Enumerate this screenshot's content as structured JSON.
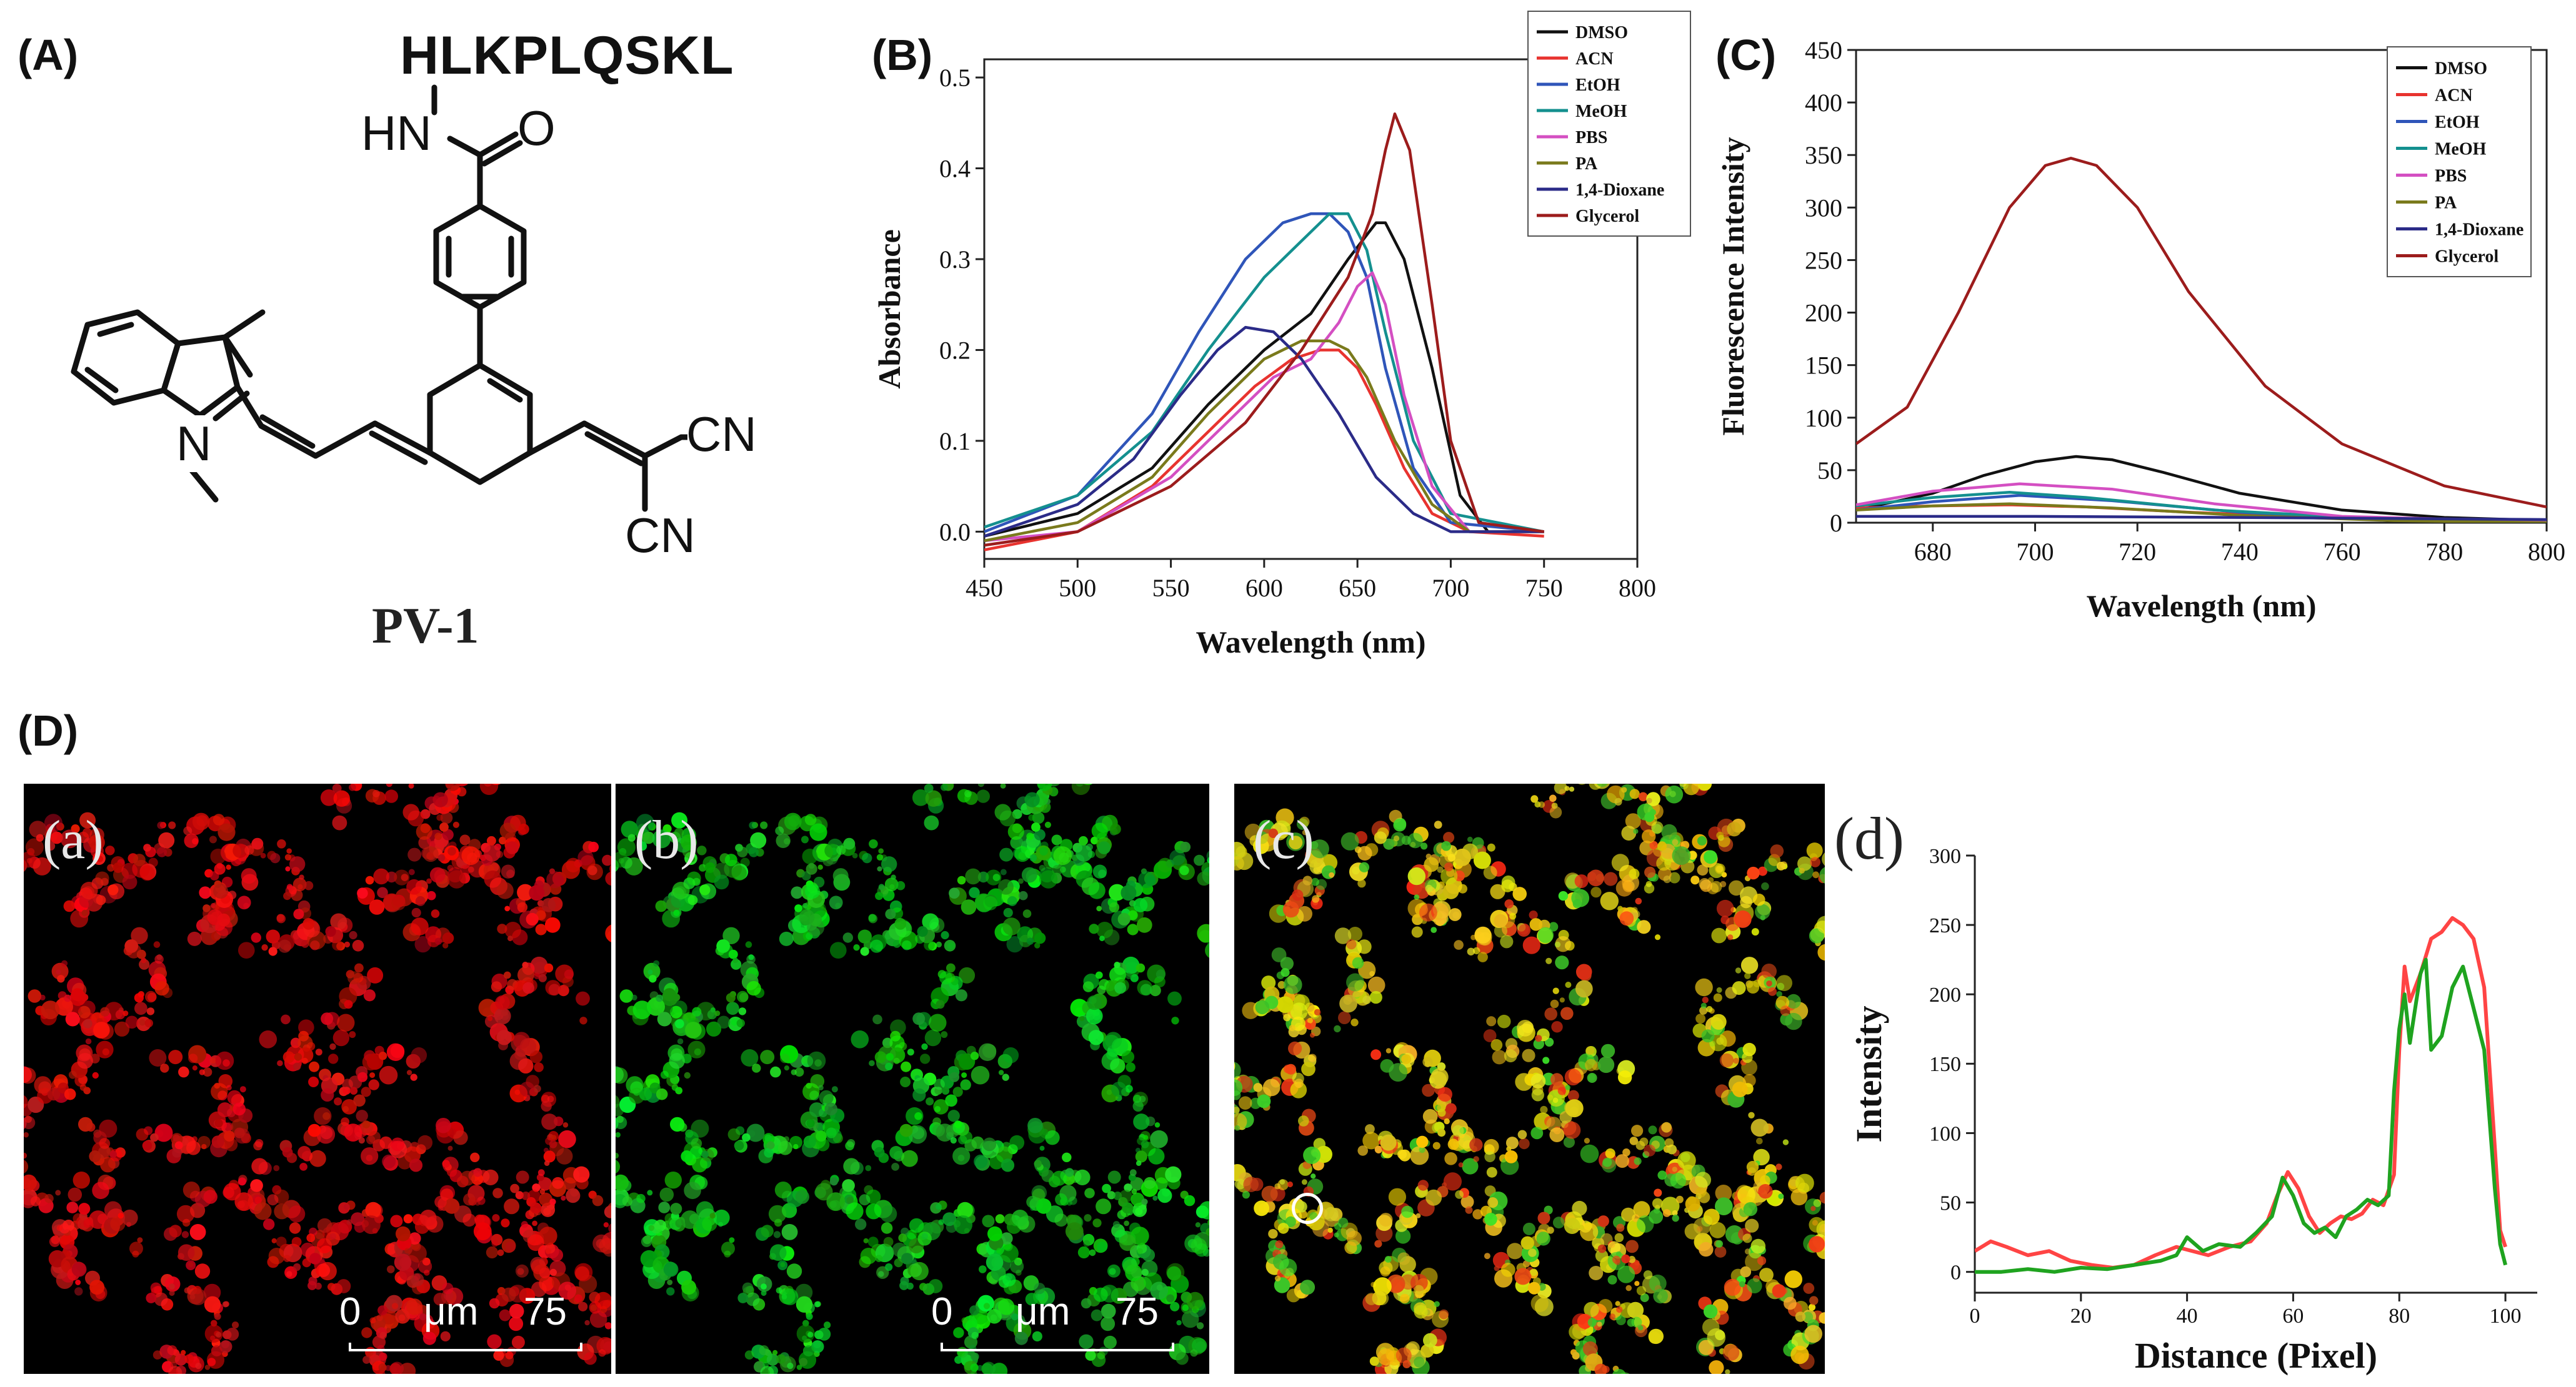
{
  "panels": {
    "A": {
      "label": "(A)",
      "peptide": "HLKPLQSKL",
      "compound_name": "PV-1",
      "atoms": {
        "hn": "HN",
        "o": "O",
        "n": "N",
        "cn1": "CN",
        "cn2": "CN"
      }
    },
    "B": {
      "label": "(B)"
    },
    "C": {
      "label": "(C)"
    },
    "D": {
      "label": "(D)",
      "images": [
        {
          "label": "(a)",
          "channel": "red",
          "scale_start": "0",
          "scale_unit": "μm",
          "scale_end": "75"
        },
        {
          "label": "(b)",
          "channel": "green",
          "scale_start": "0",
          "scale_unit": "μm",
          "scale_end": "75"
        },
        {
          "label": "(c)",
          "channel": "merge"
        }
      ]
    }
  },
  "colors": {
    "DMSO": "#111111",
    "ACN": "#e8332f",
    "EtOH": "#2f55b9",
    "MeOH": "#14908f",
    "PBS": "#d44fc2",
    "PA": "#7a7a1c",
    "Dioxane": "#2b2b88",
    "Glycerol": "#9c1c1c",
    "profile_red": "#ff4444",
    "profile_green": "#1fa31f"
  },
  "chart_data": [
    {
      "id": "B",
      "type": "line",
      "xlabel": "Wavelength (nm)",
      "ylabel": "Absorbance",
      "xlim": [
        450,
        800
      ],
      "ylim": [
        -0.03,
        0.52
      ],
      "xticks": [
        450,
        500,
        550,
        600,
        650,
        700,
        750,
        800
      ],
      "yticks": [
        0.0,
        0.1,
        0.2,
        0.3,
        0.4,
        0.5
      ],
      "ytick_labels": [
        "0.0",
        "0.1",
        "0.2",
        "0.3",
        "0.4",
        "0.5"
      ],
      "legend_position": "top-right",
      "series": [
        {
          "name": "DMSO",
          "x": [
            450,
            500,
            540,
            570,
            600,
            625,
            645,
            660,
            665,
            675,
            690,
            705,
            720,
            750
          ],
          "y": [
            -0.005,
            0.02,
            0.07,
            0.14,
            0.2,
            0.24,
            0.3,
            0.34,
            0.34,
            0.3,
            0.18,
            0.04,
            0.0,
            0.0
          ]
        },
        {
          "name": "ACN",
          "x": [
            450,
            500,
            540,
            570,
            595,
            615,
            630,
            640,
            650,
            660,
            675,
            690,
            710,
            750
          ],
          "y": [
            -0.02,
            0.0,
            0.05,
            0.11,
            0.16,
            0.19,
            0.2,
            0.2,
            0.18,
            0.14,
            0.07,
            0.02,
            0.0,
            -0.005
          ]
        },
        {
          "name": "EtOH",
          "x": [
            450,
            500,
            540,
            565,
            590,
            610,
            625,
            635,
            645,
            655,
            665,
            680,
            700,
            750
          ],
          "y": [
            0.0,
            0.04,
            0.13,
            0.22,
            0.3,
            0.34,
            0.35,
            0.35,
            0.33,
            0.28,
            0.18,
            0.07,
            0.01,
            0.0
          ]
        },
        {
          "name": "MeOH",
          "x": [
            450,
            500,
            540,
            570,
            600,
            620,
            635,
            645,
            655,
            665,
            680,
            700,
            750
          ],
          "y": [
            0.005,
            0.04,
            0.11,
            0.2,
            0.28,
            0.32,
            0.35,
            0.35,
            0.31,
            0.22,
            0.1,
            0.02,
            0.0
          ]
        },
        {
          "name": "PBS",
          "x": [
            450,
            500,
            550,
            580,
            605,
            625,
            640,
            650,
            658,
            665,
            675,
            690,
            710,
            750
          ],
          "y": [
            -0.01,
            0.0,
            0.06,
            0.12,
            0.17,
            0.19,
            0.23,
            0.27,
            0.285,
            0.25,
            0.15,
            0.05,
            0.0,
            0.0
          ]
        },
        {
          "name": "PA",
          "x": [
            450,
            500,
            540,
            570,
            600,
            620,
            635,
            645,
            655,
            670,
            690,
            710,
            750
          ],
          "y": [
            -0.01,
            0.01,
            0.06,
            0.13,
            0.19,
            0.21,
            0.21,
            0.2,
            0.17,
            0.1,
            0.03,
            0.0,
            0.0
          ]
        },
        {
          "name": "1,4-Dioxane",
          "x": [
            450,
            500,
            530,
            555,
            575,
            590,
            605,
            620,
            640,
            660,
            680,
            700,
            750
          ],
          "y": [
            -0.005,
            0.03,
            0.08,
            0.15,
            0.2,
            0.225,
            0.22,
            0.19,
            0.13,
            0.06,
            0.02,
            0.0,
            0.0
          ]
        },
        {
          "name": "Glycerol",
          "x": [
            450,
            500,
            550,
            590,
            620,
            645,
            658,
            665,
            670,
            678,
            690,
            700,
            715,
            750
          ],
          "y": [
            -0.015,
            0.0,
            0.05,
            0.12,
            0.2,
            0.28,
            0.35,
            0.42,
            0.46,
            0.42,
            0.25,
            0.1,
            0.01,
            0.0
          ]
        }
      ]
    },
    {
      "id": "C",
      "type": "line",
      "xlabel": "Wavelength (nm)",
      "ylabel": "Fluorescence Intensity",
      "xlim": [
        665,
        800
      ],
      "ylim": [
        0,
        450
      ],
      "xticks": [
        680,
        700,
        720,
        740,
        760,
        780,
        800
      ],
      "yticks": [
        0,
        50,
        100,
        150,
        200,
        250,
        300,
        350,
        400,
        450
      ],
      "legend_position": "top-right",
      "series": [
        {
          "name": "DMSO",
          "x": [
            665,
            680,
            690,
            700,
            708,
            715,
            725,
            740,
            760,
            780,
            800
          ],
          "y": [
            12,
            28,
            45,
            58,
            63,
            60,
            48,
            28,
            12,
            5,
            2
          ]
        },
        {
          "name": "ACN",
          "x": [
            665,
            680,
            695,
            710,
            730,
            760,
            800
          ],
          "y": [
            14,
            16,
            17,
            15,
            10,
            4,
            1
          ]
        },
        {
          "name": "EtOH",
          "x": [
            665,
            680,
            697,
            715,
            740,
            770,
            800
          ],
          "y": [
            12,
            20,
            26,
            21,
            10,
            3,
            1
          ]
        },
        {
          "name": "MeOH",
          "x": [
            665,
            680,
            695,
            710,
            735,
            770,
            800
          ],
          "y": [
            16,
            24,
            29,
            24,
            12,
            3,
            1
          ]
        },
        {
          "name": "PBS",
          "x": [
            665,
            680,
            697,
            715,
            735,
            760,
            800
          ],
          "y": [
            17,
            30,
            37,
            32,
            18,
            6,
            1
          ]
        },
        {
          "name": "PA",
          "x": [
            665,
            680,
            695,
            715,
            740,
            770,
            800
          ],
          "y": [
            12,
            16,
            18,
            14,
            7,
            2,
            0
          ]
        },
        {
          "name": "1,4-Dioxane",
          "x": [
            665,
            700,
            740,
            800
          ],
          "y": [
            6,
            6,
            5,
            3
          ]
        },
        {
          "name": "Glycerol",
          "x": [
            665,
            675,
            685,
            695,
            702,
            707,
            712,
            720,
            730,
            745,
            760,
            780,
            800
          ],
          "y": [
            75,
            110,
            200,
            300,
            340,
            347,
            340,
            300,
            220,
            130,
            75,
            35,
            15
          ]
        }
      ]
    },
    {
      "id": "D-d",
      "type": "line",
      "title": "(d)",
      "xlabel": "Distance (Pixel)",
      "ylabel": "Intensity",
      "xlim": [
        0,
        106
      ],
      "ylim": [
        -15,
        300
      ],
      "xticks": [
        0,
        20,
        40,
        60,
        80,
        100
      ],
      "yticks": [
        0,
        50,
        100,
        150,
        200,
        250,
        300
      ],
      "series": [
        {
          "name": "red",
          "x": [
            0,
            3,
            6,
            10,
            14,
            18,
            22,
            26,
            30,
            34,
            38,
            40,
            44,
            48,
            52,
            55,
            57,
            59,
            61,
            63,
            65,
            67,
            69,
            71,
            73,
            75,
            77,
            79,
            80,
            81,
            82,
            84,
            86,
            88,
            90,
            92,
            94,
            96,
            98,
            99,
            100
          ],
          "y": [
            15,
            22,
            18,
            12,
            15,
            8,
            5,
            3,
            5,
            12,
            18,
            16,
            12,
            18,
            22,
            35,
            55,
            72,
            60,
            40,
            28,
            35,
            40,
            38,
            42,
            52,
            48,
            70,
            160,
            220,
            195,
            215,
            240,
            245,
            255,
            250,
            240,
            205,
            90,
            30,
            18
          ]
        },
        {
          "name": "green",
          "x": [
            0,
            5,
            10,
            15,
            20,
            25,
            30,
            35,
            38,
            40,
            43,
            46,
            50,
            53,
            56,
            58,
            60,
            62,
            64,
            66,
            68,
            70,
            72,
            74,
            76,
            78,
            79,
            80,
            81,
            82,
            84,
            85,
            86,
            88,
            90,
            92,
            94,
            96,
            98,
            99,
            100
          ],
          "y": [
            0,
            0,
            2,
            0,
            3,
            2,
            5,
            8,
            12,
            25,
            15,
            20,
            18,
            28,
            40,
            68,
            55,
            35,
            28,
            32,
            25,
            40,
            45,
            52,
            48,
            55,
            130,
            175,
            200,
            165,
            215,
            225,
            160,
            170,
            205,
            220,
            190,
            160,
            60,
            20,
            5
          ]
        }
      ]
    }
  ]
}
